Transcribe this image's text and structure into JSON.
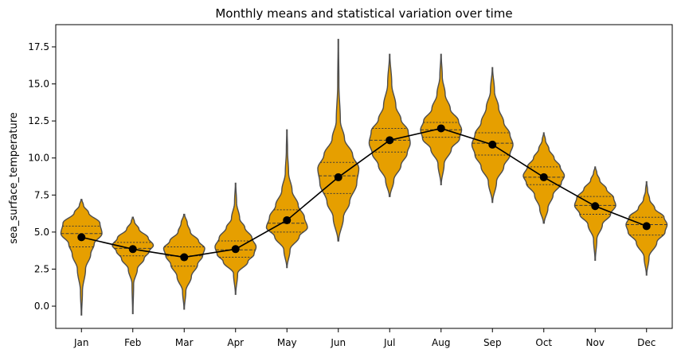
{
  "chart_data": {
    "type": "violin",
    "title": "Monthly means and statistical variation over time",
    "xlabel": "",
    "ylabel": "sea_surface_temperature",
    "ylim": [
      -1.5,
      19.0
    ],
    "yticks": [
      0.0,
      2.5,
      5.0,
      7.5,
      10.0,
      12.5,
      15.0,
      17.5
    ],
    "ytick_labels": [
      "0.0",
      "2.5",
      "5.0",
      "7.5",
      "10.0",
      "12.5",
      "15.0",
      "17.5"
    ],
    "categories": [
      "Jan",
      "Feb",
      "Mar",
      "Apr",
      "May",
      "Jun",
      "Jul",
      "Aug",
      "Sep",
      "Oct",
      "Nov",
      "Dec"
    ],
    "violin_color": "#E69F00",
    "violin_edge_color": "#4d4d4d",
    "mean_line_color": "#000000",
    "grid": false,
    "violins": [
      {
        "min": -0.6,
        "max": 7.2,
        "q1": 4.0,
        "median": 4.9,
        "q3": 5.4,
        "density": [
          [
            -0.6,
            0.01
          ],
          [
            1.0,
            0.05
          ],
          [
            2.5,
            0.2
          ],
          [
            3.5,
            0.45
          ],
          [
            4.2,
            0.62
          ],
          [
            4.9,
            1.0
          ],
          [
            5.6,
            0.9
          ],
          [
            6.3,
            0.35
          ],
          [
            6.8,
            0.1
          ],
          [
            7.2,
            0.02
          ]
        ]
      },
      {
        "min": -0.5,
        "max": 6.0,
        "q1": 3.4,
        "median": 3.9,
        "q3": 4.3,
        "density": [
          [
            -0.5,
            0.01
          ],
          [
            1.5,
            0.04
          ],
          [
            2.5,
            0.22
          ],
          [
            3.2,
            0.55
          ],
          [
            3.7,
            0.8
          ],
          [
            4.1,
            1.0
          ],
          [
            4.6,
            0.75
          ],
          [
            5.2,
            0.3
          ],
          [
            5.7,
            0.08
          ],
          [
            6.0,
            0.02
          ]
        ]
      },
      {
        "min": -0.2,
        "max": 6.2,
        "q1": 2.7,
        "median": 3.4,
        "q3": 4.0,
        "density": [
          [
            -0.2,
            0.01
          ],
          [
            1.0,
            0.08
          ],
          [
            2.0,
            0.35
          ],
          [
            2.8,
            0.65
          ],
          [
            3.4,
            0.9
          ],
          [
            3.9,
            1.0
          ],
          [
            4.4,
            0.7
          ],
          [
            5.0,
            0.3
          ],
          [
            5.6,
            0.15
          ],
          [
            6.2,
            0.02
          ]
        ]
      },
      {
        "min": 0.8,
        "max": 8.3,
        "q1": 3.3,
        "median": 3.8,
        "q3": 4.4,
        "density": [
          [
            0.8,
            0.01
          ],
          [
            2.2,
            0.1
          ],
          [
            3.0,
            0.6
          ],
          [
            3.5,
            0.9
          ],
          [
            4.0,
            1.0
          ],
          [
            4.6,
            0.8
          ],
          [
            5.3,
            0.45
          ],
          [
            5.9,
            0.2
          ],
          [
            7.0,
            0.05
          ],
          [
            8.3,
            0.01
          ]
        ]
      },
      {
        "min": 2.6,
        "max": 11.9,
        "q1": 5.0,
        "median": 5.6,
        "q3": 6.5,
        "density": [
          [
            2.6,
            0.01
          ],
          [
            3.8,
            0.15
          ],
          [
            4.7,
            0.6
          ],
          [
            5.3,
            1.0
          ],
          [
            6.0,
            0.85
          ],
          [
            6.8,
            0.55
          ],
          [
            7.8,
            0.25
          ],
          [
            9.0,
            0.08
          ],
          [
            10.5,
            0.03
          ],
          [
            11.9,
            0.01
          ]
        ]
      },
      {
        "min": 4.4,
        "max": 18.0,
        "q1": 7.6,
        "median": 8.8,
        "q3": 9.7,
        "density": [
          [
            4.4,
            0.02
          ],
          [
            6.0,
            0.25
          ],
          [
            7.0,
            0.55
          ],
          [
            8.3,
            0.9
          ],
          [
            9.3,
            1.0
          ],
          [
            10.2,
            0.7
          ],
          [
            11.3,
            0.3
          ],
          [
            12.5,
            0.1
          ],
          [
            15.0,
            0.03
          ],
          [
            18.0,
            0.01
          ]
        ]
      },
      {
        "min": 7.4,
        "max": 17.0,
        "q1": 10.4,
        "median": 11.2,
        "q3": 12.0,
        "density": [
          [
            7.4,
            0.02
          ],
          [
            8.5,
            0.2
          ],
          [
            9.5,
            0.55
          ],
          [
            10.3,
            0.85
          ],
          [
            11.0,
            1.0
          ],
          [
            11.8,
            0.9
          ],
          [
            12.6,
            0.55
          ],
          [
            13.5,
            0.3
          ],
          [
            15.0,
            0.1
          ],
          [
            17.0,
            0.01
          ]
        ]
      },
      {
        "min": 8.2,
        "max": 17.0,
        "q1": 11.4,
        "median": 11.9,
        "q3": 12.4,
        "density": [
          [
            8.2,
            0.01
          ],
          [
            9.6,
            0.15
          ],
          [
            10.6,
            0.5
          ],
          [
            11.3,
            0.9
          ],
          [
            11.9,
            1.0
          ],
          [
            12.5,
            0.85
          ],
          [
            13.3,
            0.45
          ],
          [
            14.3,
            0.2
          ],
          [
            15.5,
            0.06
          ],
          [
            17.0,
            0.01
          ]
        ]
      },
      {
        "min": 7.0,
        "max": 16.1,
        "q1": 10.2,
        "median": 11.0,
        "q3": 11.7,
        "density": [
          [
            7.0,
            0.01
          ],
          [
            8.4,
            0.2
          ],
          [
            9.4,
            0.55
          ],
          [
            10.2,
            0.85
          ],
          [
            10.9,
            1.0
          ],
          [
            11.6,
            0.85
          ],
          [
            12.4,
            0.55
          ],
          [
            13.4,
            0.3
          ],
          [
            14.5,
            0.1
          ],
          [
            16.1,
            0.01
          ]
        ]
      },
      {
        "min": 5.6,
        "max": 11.7,
        "q1": 8.2,
        "median": 8.7,
        "q3": 9.4,
        "density": [
          [
            5.6,
            0.02
          ],
          [
            6.6,
            0.2
          ],
          [
            7.5,
            0.45
          ],
          [
            8.3,
            0.85
          ],
          [
            8.8,
            1.0
          ],
          [
            9.4,
            0.8
          ],
          [
            10.0,
            0.5
          ],
          [
            10.6,
            0.25
          ],
          [
            11.2,
            0.08
          ],
          [
            11.7,
            0.01
          ]
        ]
      },
      {
        "min": 3.1,
        "max": 9.4,
        "q1": 6.2,
        "median": 6.8,
        "q3": 7.4,
        "density": [
          [
            3.1,
            0.01
          ],
          [
            4.5,
            0.08
          ],
          [
            5.5,
            0.35
          ],
          [
            6.2,
            0.75
          ],
          [
            6.8,
            1.0
          ],
          [
            7.3,
            0.9
          ],
          [
            7.9,
            0.55
          ],
          [
            8.5,
            0.22
          ],
          [
            9.0,
            0.08
          ],
          [
            9.4,
            0.01
          ]
        ]
      },
      {
        "min": 2.1,
        "max": 8.4,
        "q1": 4.8,
        "median": 5.5,
        "q3": 6.0,
        "density": [
          [
            2.1,
            0.01
          ],
          [
            3.3,
            0.12
          ],
          [
            4.3,
            0.5
          ],
          [
            5.0,
            0.9
          ],
          [
            5.5,
            1.0
          ],
          [
            6.0,
            0.85
          ],
          [
            6.6,
            0.4
          ],
          [
            7.2,
            0.15
          ],
          [
            7.8,
            0.05
          ],
          [
            8.4,
            0.01
          ]
        ]
      }
    ],
    "means": [
      4.65,
      3.85,
      3.3,
      3.85,
      5.8,
      8.7,
      11.2,
      12.0,
      10.9,
      8.7,
      6.75,
      5.4
    ]
  }
}
